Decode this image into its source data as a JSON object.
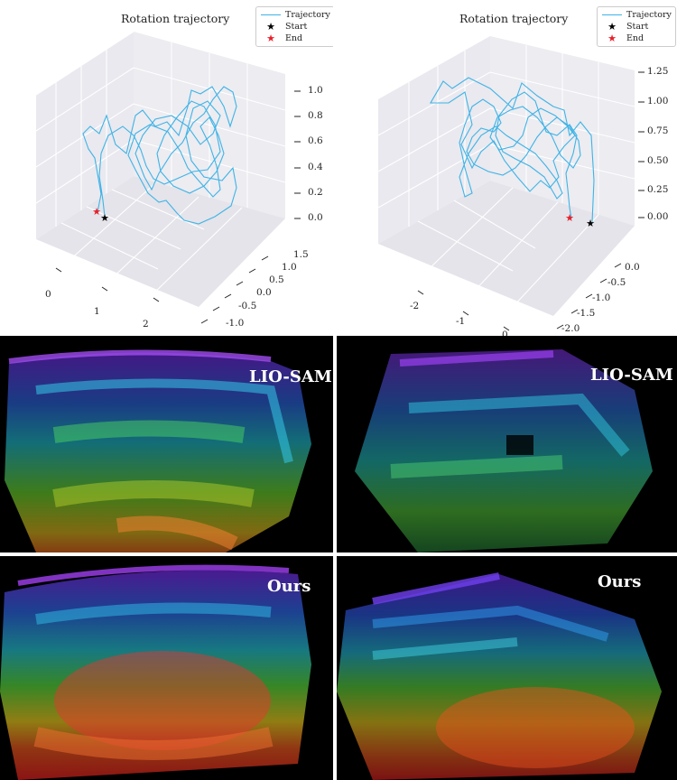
{
  "plots": [
    {
      "title": "Rotation trajectory",
      "legend": {
        "trajectory": "Trajectory",
        "start": "Start",
        "end": "End"
      },
      "z_ticks": [
        "1.0",
        "0.8",
        "0.6",
        "0.4",
        "0.2",
        "0.0"
      ],
      "y_ticks": [
        "1.5",
        "1.0",
        "0.5",
        "0.0",
        "-0.5",
        "-1.0"
      ],
      "x_ticks": [
        "0",
        "1",
        "2"
      ]
    },
    {
      "title": "Rotation trajectory",
      "legend": {
        "trajectory": "Trajectory",
        "start": "Start",
        "end": "End"
      },
      "z_ticks": [
        "1.25",
        "1.00",
        "0.75",
        "0.50",
        "0.25",
        "0.00"
      ],
      "y_ticks": [
        "0.0",
        "-0.5",
        "-1.0",
        "-1.5",
        "-2.0"
      ],
      "x_ticks": [
        "-2",
        "-1",
        "0"
      ]
    }
  ],
  "pointclouds": [
    {
      "label": "LIO-SAM"
    },
    {
      "label": "LIO-SAM"
    },
    {
      "label": "Ours"
    },
    {
      "label": "Ours"
    }
  ],
  "colors": {
    "trajectory": "#3fb3e6",
    "start_marker": "#000000",
    "end_marker": "#e8202a",
    "pane": "#eaeaf0"
  }
}
